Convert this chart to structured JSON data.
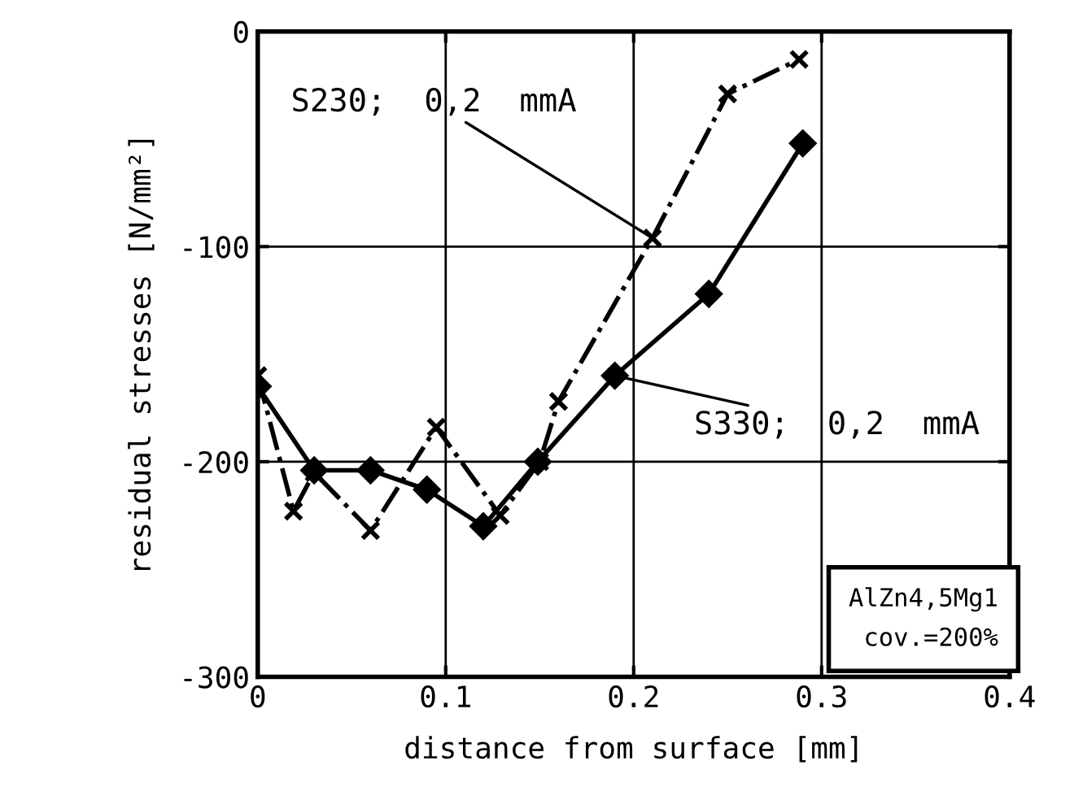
{
  "chart_data": {
    "type": "line",
    "xlabel": "distance from surface [mm]",
    "ylabel": "residual stresses [N/mm²]",
    "xlim": [
      0,
      0.4
    ],
    "ylim": [
      -300,
      0
    ],
    "xticks": [
      0,
      0.1,
      0.2,
      0.3,
      0.4
    ],
    "yticks": [
      -300,
      -200,
      -100,
      0
    ],
    "grid": true,
    "legend": false,
    "series": [
      {
        "color": "#000000",
        "marker": "diamond",
        "line_style": "solid",
        "x": [
          0,
          0.03,
          0.06,
          0.09,
          0.12,
          0.149,
          0.19,
          0.24,
          0.29
        ],
        "values": [
          -165,
          -204,
          -204,
          -213,
          -230,
          -200,
          -160,
          -122,
          -52
        ]
      },
      {
        "color": "#000000",
        "marker": "cross",
        "line_style": "dashdot",
        "x": [
          0,
          0.019,
          0.03,
          0.06,
          0.095,
          0.129,
          0.15,
          0.16,
          0.21,
          0.25,
          0.288
        ],
        "values": [
          -160,
          -223,
          -205,
          -232,
          -184,
          -225,
          -200,
          -172,
          -96,
          -29,
          -13
        ]
      }
    ],
    "annotations": [
      {
        "text": "S230;  0,2  mmA",
        "x": 0.21,
        "y": -96
      },
      {
        "text": "S330;  0,2  mmA",
        "x": 0.19,
        "y": -160
      },
      "AlZn4,5Mg1\ncov.=200%"
    ]
  }
}
